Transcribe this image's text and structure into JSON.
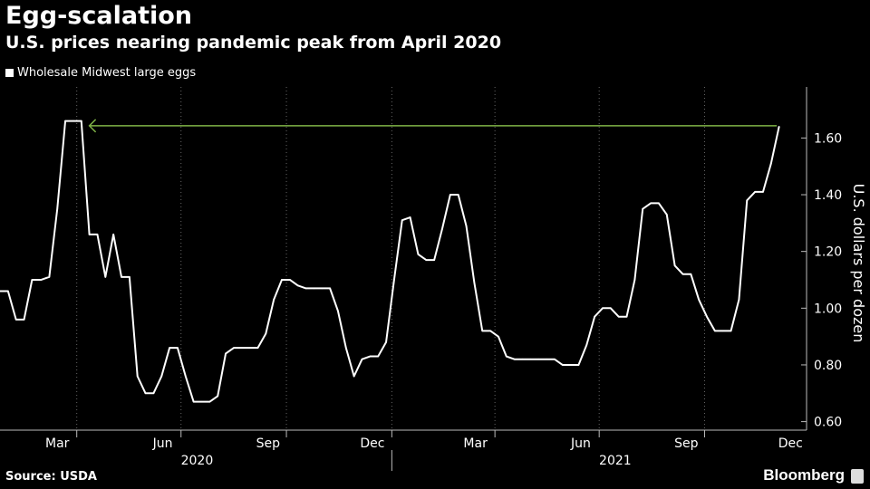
{
  "header": {
    "title": "Egg-scalation",
    "subtitle": "U.S. prices nearing pandemic peak from April 2020"
  },
  "legend": {
    "label": "Wholesale Midwest large eggs"
  },
  "footer": {
    "source": "Source: USDA",
    "brand": "Bloomberg"
  },
  "colors": {
    "background": "#000000",
    "line": "#ffffff",
    "grid": "#666666",
    "arrow": "#7fb347"
  },
  "chart_data": {
    "type": "line",
    "title": "Egg-scalation",
    "subtitle": "U.S. prices nearing pandemic peak from April 2020",
    "ylabel": "U.S. dollars per dozen",
    "xlabel": "",
    "ylim": [
      0.57,
      1.78
    ],
    "y_ticks": [
      0.6,
      0.8,
      1.0,
      1.2,
      1.4,
      1.6
    ],
    "y_tick_labels": [
      "0.60",
      "0.80",
      "1.00",
      "1.20",
      "1.40",
      "1.60"
    ],
    "y_axis_side": "right",
    "grid": "vertical dotted",
    "legend_position": "top-left",
    "x_range": [
      "2020-01-25",
      "2021-12-29"
    ],
    "month_ticks": [
      {
        "date": "2020-03-15",
        "label": "Mar"
      },
      {
        "date": "2020-06-15",
        "label": "Jun"
      },
      {
        "date": "2020-09-15",
        "label": "Sep"
      },
      {
        "date": "2020-12-15",
        "label": "Dec"
      },
      {
        "date": "2021-03-15",
        "label": "Mar"
      },
      {
        "date": "2021-06-15",
        "label": "Jun"
      },
      {
        "date": "2021-09-15",
        "label": "Sep"
      },
      {
        "date": "2021-12-15",
        "label": "Dec"
      }
    ],
    "gridline_dates": [
      "2020-04-01",
      "2020-07-01",
      "2020-10-01",
      "2021-01-01",
      "2021-04-01",
      "2021-07-01",
      "2021-10-01"
    ],
    "year_labels": [
      {
        "year": "2020",
        "center": "2020-07-15"
      },
      {
        "year": "2021",
        "center": "2021-07-15"
      }
    ],
    "year_divider": "2021-01-01",
    "series": [
      {
        "name": "Wholesale Midwest large eggs",
        "points": [
          [
            "2020-01-25",
            1.06
          ],
          [
            "2020-02-01",
            1.06
          ],
          [
            "2020-02-08",
            0.96
          ],
          [
            "2020-02-15",
            0.96
          ],
          [
            "2020-02-22",
            1.1
          ],
          [
            "2020-03-01",
            1.1
          ],
          [
            "2020-03-08",
            1.11
          ],
          [
            "2020-03-15",
            1.35
          ],
          [
            "2020-03-22",
            1.66
          ],
          [
            "2020-03-29",
            1.66
          ],
          [
            "2020-04-05",
            1.66
          ],
          [
            "2020-04-12",
            1.26
          ],
          [
            "2020-04-19",
            1.26
          ],
          [
            "2020-04-26",
            1.11
          ],
          [
            "2020-05-03",
            1.26
          ],
          [
            "2020-05-10",
            1.11
          ],
          [
            "2020-05-17",
            1.11
          ],
          [
            "2020-05-24",
            0.76
          ],
          [
            "2020-05-31",
            0.7
          ],
          [
            "2020-06-07",
            0.7
          ],
          [
            "2020-06-14",
            0.76
          ],
          [
            "2020-06-21",
            0.86
          ],
          [
            "2020-06-28",
            0.86
          ],
          [
            "2020-07-05",
            0.76
          ],
          [
            "2020-07-12",
            0.67
          ],
          [
            "2020-07-19",
            0.67
          ],
          [
            "2020-07-26",
            0.67
          ],
          [
            "2020-08-02",
            0.69
          ],
          [
            "2020-08-09",
            0.84
          ],
          [
            "2020-08-16",
            0.86
          ],
          [
            "2020-08-23",
            0.86
          ],
          [
            "2020-08-30",
            0.86
          ],
          [
            "2020-09-06",
            0.86
          ],
          [
            "2020-09-13",
            0.91
          ],
          [
            "2020-09-20",
            1.03
          ],
          [
            "2020-09-27",
            1.1
          ],
          [
            "2020-10-04",
            1.1
          ],
          [
            "2020-10-11",
            1.08
          ],
          [
            "2020-10-18",
            1.07
          ],
          [
            "2020-10-25",
            1.07
          ],
          [
            "2020-11-01",
            1.07
          ],
          [
            "2020-11-08",
            1.07
          ],
          [
            "2020-11-15",
            0.99
          ],
          [
            "2020-11-22",
            0.86
          ],
          [
            "2020-11-29",
            0.76
          ],
          [
            "2020-12-06",
            0.82
          ],
          [
            "2020-12-13",
            0.83
          ],
          [
            "2020-12-20",
            0.83
          ],
          [
            "2020-12-27",
            0.88
          ],
          [
            "2021-01-03",
            1.1
          ],
          [
            "2021-01-10",
            1.31
          ],
          [
            "2021-01-17",
            1.32
          ],
          [
            "2021-01-24",
            1.19
          ],
          [
            "2021-01-31",
            1.17
          ],
          [
            "2021-02-07",
            1.17
          ],
          [
            "2021-02-14",
            1.28
          ],
          [
            "2021-02-21",
            1.4
          ],
          [
            "2021-02-28",
            1.4
          ],
          [
            "2021-03-07",
            1.29
          ],
          [
            "2021-03-14",
            1.09
          ],
          [
            "2021-03-21",
            0.92
          ],
          [
            "2021-03-28",
            0.92
          ],
          [
            "2021-04-04",
            0.9
          ],
          [
            "2021-04-11",
            0.83
          ],
          [
            "2021-04-18",
            0.82
          ],
          [
            "2021-04-25",
            0.82
          ],
          [
            "2021-05-02",
            0.82
          ],
          [
            "2021-05-09",
            0.82
          ],
          [
            "2021-05-16",
            0.82
          ],
          [
            "2021-05-23",
            0.82
          ],
          [
            "2021-05-30",
            0.8
          ],
          [
            "2021-06-06",
            0.8
          ],
          [
            "2021-06-13",
            0.8
          ],
          [
            "2021-06-20",
            0.87
          ],
          [
            "2021-06-27",
            0.97
          ],
          [
            "2021-07-04",
            1.0
          ],
          [
            "2021-07-11",
            1.0
          ],
          [
            "2021-07-18",
            0.97
          ],
          [
            "2021-07-25",
            0.97
          ],
          [
            "2021-08-01",
            1.1
          ],
          [
            "2021-08-08",
            1.35
          ],
          [
            "2021-08-15",
            1.37
          ],
          [
            "2021-08-22",
            1.37
          ],
          [
            "2021-08-29",
            1.33
          ],
          [
            "2021-09-05",
            1.15
          ],
          [
            "2021-09-12",
            1.12
          ],
          [
            "2021-09-19",
            1.12
          ],
          [
            "2021-09-26",
            1.03
          ],
          [
            "2021-10-03",
            0.97
          ],
          [
            "2021-10-10",
            0.92
          ],
          [
            "2021-10-17",
            0.92
          ],
          [
            "2021-10-24",
            0.92
          ],
          [
            "2021-10-31",
            1.03
          ],
          [
            "2021-11-07",
            1.38
          ],
          [
            "2021-11-14",
            1.41
          ],
          [
            "2021-11-21",
            1.41
          ],
          [
            "2021-11-28",
            1.51
          ],
          [
            "2021-12-05",
            1.64
          ]
        ]
      }
    ],
    "annotations": [
      {
        "type": "arrow",
        "from_date": "2021-12-03",
        "to_date": "2020-04-12",
        "value": 1.64,
        "color": "#7fb347"
      }
    ]
  }
}
